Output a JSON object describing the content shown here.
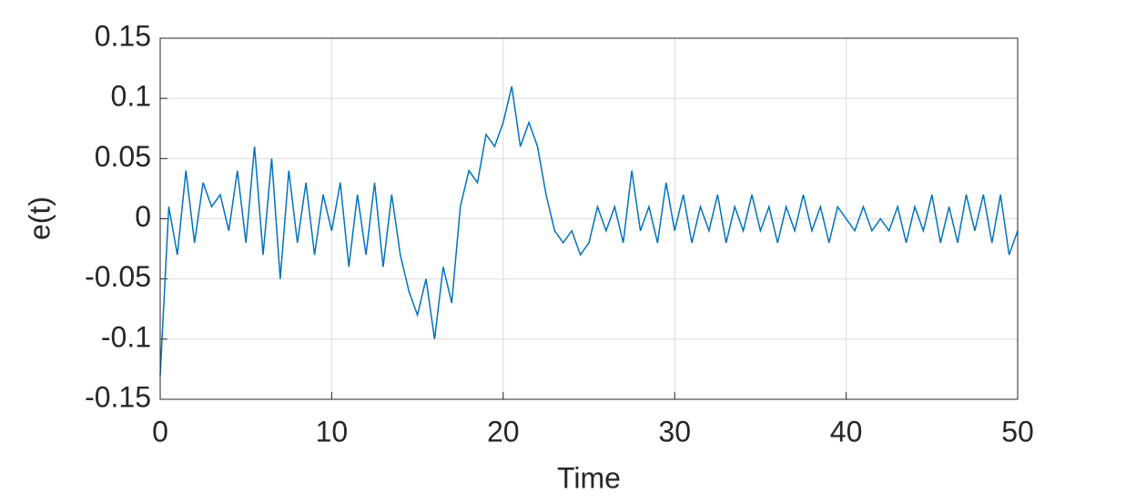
{
  "chart_data": {
    "type": "line",
    "xlabel": "Time",
    "ylabel": "e(t)",
    "x": [
      0,
      0.5,
      1,
      1.5,
      2,
      2.5,
      3,
      3.5,
      4,
      4.5,
      5,
      5.5,
      6,
      6.5,
      7,
      7.5,
      8,
      8.5,
      9,
      9.5,
      10,
      10.5,
      11,
      11.5,
      12,
      12.5,
      13,
      13.5,
      14,
      14.5,
      15,
      15.5,
      16,
      16.5,
      17,
      17.5,
      18,
      18.5,
      19,
      19.5,
      20,
      20.5,
      21,
      21.5,
      22,
      22.5,
      23,
      23.5,
      24,
      24.5,
      25,
      25.5,
      26,
      26.5,
      27,
      27.5,
      28,
      28.5,
      29,
      29.5,
      30,
      30.5,
      31,
      31.5,
      32,
      32.5,
      33,
      33.5,
      34,
      34.5,
      35,
      35.5,
      36,
      36.5,
      37,
      37.5,
      38,
      38.5,
      39,
      39.5,
      40,
      40.5,
      41,
      41.5,
      42,
      42.5,
      43,
      43.5,
      44,
      44.5,
      45,
      45.5,
      46,
      46.5,
      47,
      47.5,
      48,
      48.5,
      49,
      49.5,
      50
    ],
    "series": [
      {
        "name": "e(t)",
        "color": "#0072bd",
        "values": [
          -0.13,
          0.01,
          -0.03,
          0.04,
          -0.02,
          0.03,
          0.01,
          0.02,
          -0.01,
          0.04,
          -0.02,
          0.06,
          -0.03,
          0.05,
          -0.05,
          0.04,
          -0.02,
          0.03,
          -0.03,
          0.02,
          -0.01,
          0.03,
          -0.04,
          0.02,
          -0.03,
          0.03,
          -0.04,
          0.02,
          -0.03,
          -0.06,
          -0.08,
          -0.05,
          -0.1,
          -0.04,
          -0.07,
          0.01,
          0.04,
          0.03,
          0.07,
          0.06,
          0.08,
          0.11,
          0.06,
          0.08,
          0.06,
          0.02,
          -0.01,
          -0.02,
          -0.01,
          -0.03,
          -0.02,
          0.01,
          -0.01,
          0.01,
          -0.02,
          0.04,
          -0.01,
          0.01,
          -0.02,
          0.03,
          -0.01,
          0.02,
          -0.02,
          0.01,
          -0.01,
          0.02,
          -0.02,
          0.01,
          -0.01,
          0.02,
          -0.01,
          0.01,
          -0.02,
          0.01,
          -0.01,
          0.02,
          -0.01,
          0.01,
          -0.02,
          0.01,
          0,
          -0.01,
          0.01,
          -0.01,
          0,
          -0.01,
          0.01,
          -0.02,
          0.01,
          -0.01,
          0.02,
          -0.02,
          0.01,
          -0.02,
          0.02,
          -0.01,
          0.02,
          -0.02,
          0.02,
          -0.03,
          -0.01
        ]
      }
    ],
    "xlim": [
      0,
      50
    ],
    "xticks": [
      0,
      10,
      20,
      30,
      40,
      50
    ],
    "ylim": [
      -0.15,
      0.15
    ],
    "yticks": [
      -0.15,
      -0.1,
      -0.05,
      0,
      0.05,
      0.1,
      0.15
    ],
    "grid": true
  }
}
